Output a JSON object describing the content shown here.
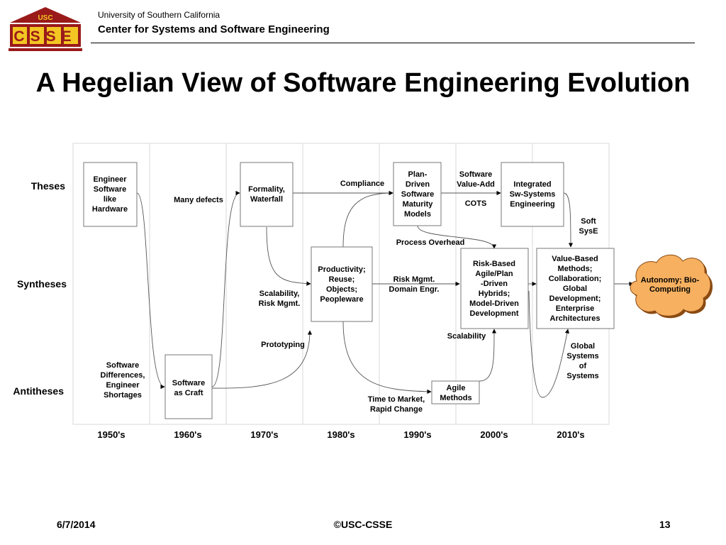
{
  "header": {
    "logo_top": "USC",
    "logo_bottom": "CSSE",
    "university": "University of Southern California",
    "center": "Center for Systems and Software Engineering"
  },
  "title": "A Hegelian View of Software Engineering Evolution",
  "rows": {
    "theses": "Theses",
    "syntheses": "Syntheses",
    "antitheses": "Antitheses"
  },
  "decades": [
    "1950's",
    "1960's",
    "1970's",
    "1980's",
    "1990's",
    "2000's",
    "2010's"
  ],
  "boxes": {
    "engineer_software": "Engineer\nSoftware\nlike\nHardware",
    "software_craft": "Software\nas Craft",
    "formality": "Formality,\nWaterfall",
    "productivity": "Productivity;\nReuse;\nObjects;\nPeopleware",
    "plan_driven": "Plan-\nDriven\nSoftware\nMaturity\nModels",
    "integrated": "Integrated\nSw-Systems\nEngineering",
    "risk_based": "Risk-Based\nAgile/Plan\n-Driven\nHybrids;\nModel-Driven\nDevelopment",
    "value_based": "Value-Based\nMethods;\nCollaboration;\nGlobal\nDevelopment;\nEnterprise\nArchitectures",
    "agile": "Agile\nMethods",
    "autonomy": "Autonomy; Bio-\nComputing"
  },
  "labels": {
    "sw_differences": "Software\nDifferences,\nEngineer\nShortages",
    "many_defects": "Many defects",
    "compliance": "Compliance",
    "sw_value_add": "Software\nValue-Add",
    "cots": "COTS",
    "soft_syse": "Soft\nSysE",
    "process_overhead": "Process Overhead",
    "risk_mgmt_domain": "Risk Mgmt.\nDomain Engr.",
    "scalability_risk": "Scalability,\nRisk Mgmt.",
    "prototyping": "Prototyping",
    "scalability": "Scalability",
    "global_systems": "Global\nSystems\nof\nSystems",
    "time_to_market": "Time to Market,\nRapid Change"
  },
  "footer": {
    "date": "6/7/2014",
    "copyright": "©USC-CSSE",
    "page": "13"
  }
}
